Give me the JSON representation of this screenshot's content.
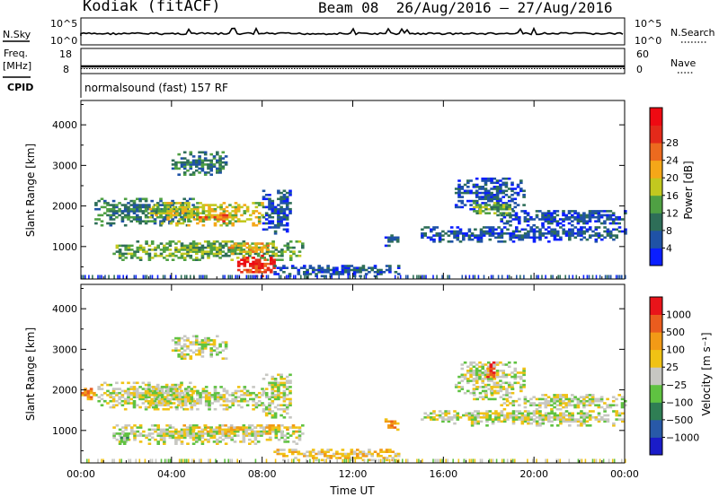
{
  "header": {
    "station": "Kodiak (fitACF)",
    "beam_info": "Beam 08  26/Aug/2016 – 27/Aug/2016"
  },
  "strip_noise": {
    "left_label": "N.Sky",
    "left_ticks": [
      "10^5",
      "10^0"
    ],
    "right_ticks": [
      "10^5",
      "10^0"
    ],
    "right_label": "N.Search"
  },
  "strip_freq": {
    "left_label_line1": "Freq.",
    "left_label_line2": "[MHz]",
    "left_ticks": [
      "18",
      "8"
    ],
    "right_ticks": [
      "60",
      "0"
    ],
    "right_label": "Nave"
  },
  "strip_cpid": {
    "left_label": "CPID",
    "text": "normalsound (fast) 157 RF"
  },
  "chart_data": [
    {
      "type": "heatmap",
      "panel": "power",
      "ylabel": "Slant Range [km]",
      "xlabel": "",
      "x_ticks": [
        "00:00",
        "04:00",
        "08:00",
        "12:00",
        "16:00",
        "20:00",
        "00:00"
      ],
      "y_ticks": [
        1000,
        2000,
        3000,
        4000
      ],
      "ylim": [
        200,
        4600
      ],
      "xlim_hours": [
        0,
        24
      ],
      "colorbar": {
        "label": "Power [dB]",
        "ticks": [
          "4",
          "8",
          "12",
          "16",
          "20",
          "24",
          "28"
        ],
        "colors": [
          "#0a1eff",
          "#1f52a6",
          "#2e6e58",
          "#4fa043",
          "#c2c81f",
          "#f5a718",
          "#ec6a1f",
          "#e32a1a",
          "#ee0a12"
        ]
      },
      "echo_regions": [
        {
          "t0": 4.0,
          "t1": 6.4,
          "r0": 2750,
          "r1": 3350,
          "level": 2
        },
        {
          "t0": 0.6,
          "t1": 5.0,
          "r0": 1500,
          "r1": 2200,
          "level": 2
        },
        {
          "t0": 3.0,
          "t1": 8.0,
          "r0": 1500,
          "r1": 2100,
          "level": 4
        },
        {
          "t0": 5.2,
          "t1": 6.6,
          "r0": 1600,
          "r1": 1800,
          "level": 6
        },
        {
          "t0": 1.4,
          "t1": 9.8,
          "r0": 650,
          "r1": 1150,
          "level": 3
        },
        {
          "t0": 6.5,
          "t1": 8.3,
          "r0": 800,
          "r1": 1100,
          "level": 5
        },
        {
          "t0": 6.9,
          "t1": 8.5,
          "r0": 250,
          "r1": 800,
          "level": 7
        },
        {
          "t0": 8.0,
          "t1": 9.3,
          "r0": 1300,
          "r1": 2400,
          "level": 1
        },
        {
          "t0": 8.5,
          "t1": 14.0,
          "r0": 250,
          "r1": 550,
          "level": 1
        },
        {
          "t0": 13.4,
          "t1": 14.0,
          "r0": 1000,
          "r1": 1300,
          "level": 1
        },
        {
          "t0": 16.5,
          "t1": 19.5,
          "r0": 1900,
          "r1": 2700,
          "level": 1
        },
        {
          "t0": 17.3,
          "t1": 19.0,
          "r0": 1700,
          "r1": 2100,
          "level": 3
        },
        {
          "t0": 15.0,
          "t1": 24.0,
          "r0": 1100,
          "r1": 1500,
          "level": 1
        },
        {
          "t0": 18.5,
          "t1": 24.0,
          "r0": 1500,
          "r1": 1900,
          "level": 1
        }
      ]
    },
    {
      "type": "heatmap",
      "panel": "velocity",
      "ylabel": "Slant Range [km]",
      "xlabel": "Time UT",
      "x_ticks": [
        "00:00",
        "04:00",
        "08:00",
        "12:00",
        "16:00",
        "20:00",
        "00:00"
      ],
      "y_ticks": [
        1000,
        2000,
        3000,
        4000
      ],
      "ylim": [
        200,
        4600
      ],
      "xlim_hours": [
        0,
        24
      ],
      "colorbar": {
        "label": "Velocity [m s⁻¹]",
        "ticks": [
          "1000",
          "500",
          "100",
          "25",
          "−25",
          "−100",
          "−500",
          "−1000"
        ],
        "colors": [
          "#1a1cc8",
          "#2859a8",
          "#2f7e54",
          "#5fc241",
          "#c7c7c2",
          "#f0c214",
          "#f29a16",
          "#ea5c1e",
          "#e9141a"
        ]
      },
      "echo_regions": [
        {
          "t0": 4.0,
          "t1": 6.4,
          "r0": 2750,
          "r1": 3350,
          "level": 4
        },
        {
          "t0": 0.6,
          "t1": 5.0,
          "r0": 1500,
          "r1": 2200,
          "level": 4
        },
        {
          "t0": 3.0,
          "t1": 8.0,
          "r0": 1500,
          "r1": 2100,
          "level": 4
        },
        {
          "t0": 1.4,
          "t1": 9.8,
          "r0": 650,
          "r1": 1150,
          "level": 4
        },
        {
          "t0": 4.5,
          "t1": 9.5,
          "r0": 900,
          "r1": 1150,
          "level": 5
        },
        {
          "t0": 1.6,
          "t1": 2.2,
          "r0": 600,
          "r1": 900,
          "level": 3
        },
        {
          "t0": 8.0,
          "t1": 9.3,
          "r0": 1300,
          "r1": 2400,
          "level": 4
        },
        {
          "t0": 8.5,
          "t1": 14.0,
          "r0": 250,
          "r1": 550,
          "level": 5
        },
        {
          "t0": 13.4,
          "t1": 14.0,
          "r0": 1000,
          "r1": 1300,
          "level": 6
        },
        {
          "t0": 16.5,
          "t1": 19.5,
          "r0": 1900,
          "r1": 2700,
          "level": 4
        },
        {
          "t0": 17.9,
          "t1": 18.3,
          "r0": 2300,
          "r1": 2700,
          "level": 7
        },
        {
          "t0": 17.3,
          "t1": 19.0,
          "r0": 1700,
          "r1": 2100,
          "level": 4
        },
        {
          "t0": 15.0,
          "t1": 24.0,
          "r0": 1100,
          "r1": 1500,
          "level": 4
        },
        {
          "t0": 18.5,
          "t1": 24.0,
          "r0": 1500,
          "r1": 1900,
          "level": 4
        },
        {
          "t0": 0.0,
          "t1": 0.6,
          "r0": 1700,
          "r1": 2100,
          "level": 6
        }
      ]
    }
  ]
}
